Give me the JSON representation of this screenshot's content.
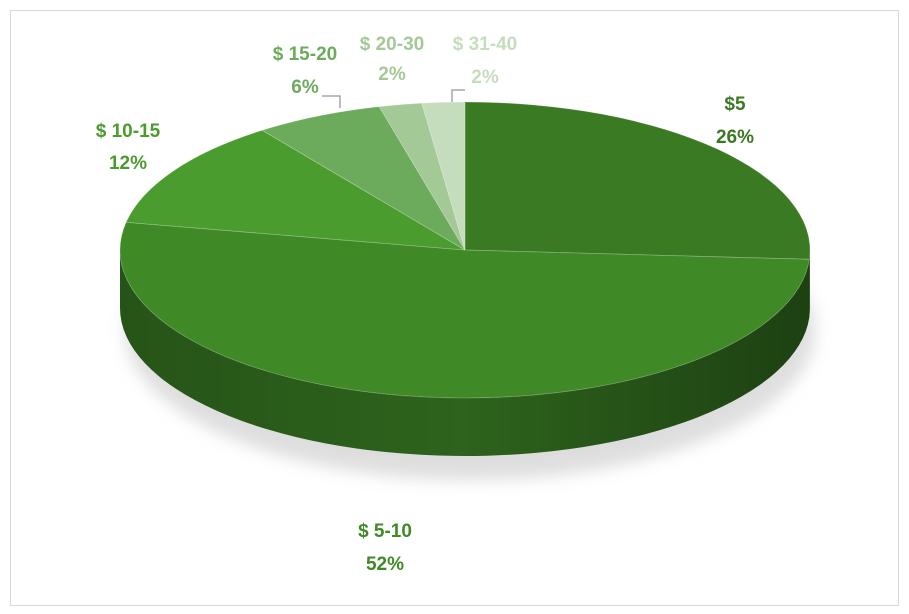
{
  "chart_data": {
    "type": "pie3d",
    "categories": [
      "$5",
      "$ 5-10",
      "$ 10-15",
      "$ 15-20",
      "$ 20-30",
      "$ 31-40"
    ],
    "values": [
      26,
      52,
      12,
      6,
      2,
      2
    ],
    "value_labels": [
      "26%",
      "52%",
      "12%",
      "6%",
      "2%",
      "2%"
    ],
    "colors": [
      "#3a7a22",
      "#3f8a27",
      "#4b9c2f",
      "#6dab5c",
      "#a3c996",
      "#c6ddbd"
    ]
  }
}
